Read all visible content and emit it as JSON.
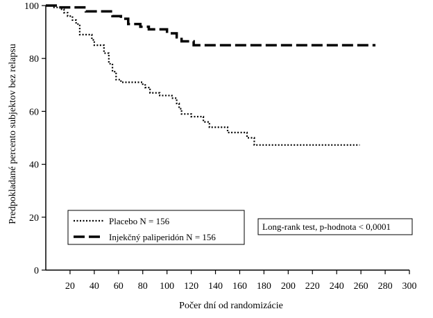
{
  "chart_data": {
    "type": "line",
    "ylabel": "Predpokladané percento subjektov bez relapsu",
    "xlabel": "Počer dní od randomizácie",
    "xlim": [
      0,
      300
    ],
    "ylim": [
      0,
      100
    ],
    "xticks": [
      20,
      40,
      60,
      80,
      100,
      120,
      140,
      160,
      180,
      200,
      220,
      240,
      260,
      280,
      300
    ],
    "yticks": [
      0,
      20,
      40,
      60,
      80,
      100
    ],
    "grid": false,
    "legend_position": "bottom-left",
    "annotation": "Long-rank test, p-hodnota < 0,0001",
    "series": [
      {
        "name": "Placebo N = 156",
        "style": "dotted",
        "color": "#000000",
        "points": [
          [
            0,
            100
          ],
          [
            6,
            100
          ],
          [
            6,
            99.3
          ],
          [
            12,
            99.3
          ],
          [
            12,
            98.6
          ],
          [
            15,
            98.6
          ],
          [
            15,
            97.3
          ],
          [
            18,
            97.3
          ],
          [
            18,
            96
          ],
          [
            22,
            96
          ],
          [
            22,
            94.5
          ],
          [
            25,
            94.5
          ],
          [
            25,
            93
          ],
          [
            28,
            93
          ],
          [
            28,
            89
          ],
          [
            38,
            89
          ],
          [
            38,
            87
          ],
          [
            40,
            87
          ],
          [
            40,
            85
          ],
          [
            48,
            85
          ],
          [
            48,
            82
          ],
          [
            52,
            82
          ],
          [
            52,
            78
          ],
          [
            55,
            78
          ],
          [
            55,
            75
          ],
          [
            58,
            75
          ],
          [
            58,
            72
          ],
          [
            62,
            72
          ],
          [
            62,
            71
          ],
          [
            80,
            71
          ],
          [
            80,
            70
          ],
          [
            82,
            70
          ],
          [
            82,
            69
          ],
          [
            86,
            69
          ],
          [
            86,
            67
          ],
          [
            94,
            67
          ],
          [
            94,
            66
          ],
          [
            104,
            66
          ],
          [
            104,
            65
          ],
          [
            108,
            65
          ],
          [
            108,
            63
          ],
          [
            110,
            63
          ],
          [
            110,
            61
          ],
          [
            112,
            61
          ],
          [
            112,
            59
          ],
          [
            120,
            59
          ],
          [
            120,
            58
          ],
          [
            130,
            58
          ],
          [
            130,
            56
          ],
          [
            135,
            56
          ],
          [
            135,
            54
          ],
          [
            150,
            54
          ],
          [
            150,
            52
          ],
          [
            166,
            52
          ],
          [
            166,
            50
          ],
          [
            172,
            50
          ],
          [
            172,
            47.3
          ],
          [
            259,
            47.3
          ]
        ]
      },
      {
        "name": "Injekčný paliperidón N = 156",
        "style": "dashed",
        "color": "#000000",
        "points": [
          [
            0,
            100
          ],
          [
            10,
            100
          ],
          [
            10,
            99.3
          ],
          [
            33,
            99.3
          ],
          [
            33,
            97.8
          ],
          [
            55,
            97.8
          ],
          [
            55,
            96
          ],
          [
            62,
            96
          ],
          [
            62,
            95
          ],
          [
            68,
            95
          ],
          [
            68,
            93
          ],
          [
            78,
            93
          ],
          [
            78,
            92
          ],
          [
            85,
            92
          ],
          [
            85,
            91
          ],
          [
            100,
            91
          ],
          [
            100,
            89.5
          ],
          [
            108,
            89.5
          ],
          [
            108,
            88
          ],
          [
            112,
            88
          ],
          [
            112,
            86.5
          ],
          [
            122,
            86.5
          ],
          [
            122,
            85
          ],
          [
            272,
            85
          ]
        ]
      }
    ]
  }
}
